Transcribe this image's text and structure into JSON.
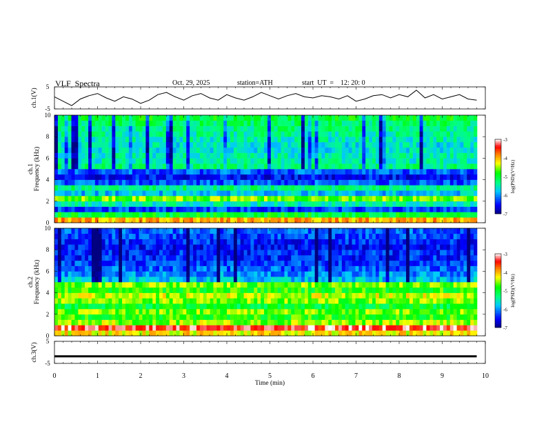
{
  "header": {
    "title": "VLF  Spectra",
    "date": "Oct. 29, 2025",
    "station": "station=ATH",
    "start_ut": "start  UT  =    12: 20: 0"
  },
  "colors": {
    "dark_blue": "#000080",
    "blue": "#0000ff",
    "cyan": "#00e0ff",
    "green": "#00ff00",
    "yellow": "#ffff00",
    "red": "#ff0000",
    "white": "#ffffff",
    "black": "#000000"
  },
  "chart_data": [
    {
      "type": "line",
      "name": "ch1-voltage",
      "ylabel": "ch.1(V)",
      "ylim": [
        -5,
        5
      ],
      "y_ticks": [
        "5",
        "-5"
      ],
      "xlim": [
        0,
        10
      ],
      "series": [
        {
          "name": "ch.1",
          "x": [
            0,
            0.2,
            0.4,
            0.6,
            0.8,
            1.0,
            1.2,
            1.4,
            1.6,
            1.8,
            2.0,
            2.2,
            2.4,
            2.6,
            2.8,
            3.0,
            3.2,
            3.4,
            3.6,
            3.8,
            4.0,
            4.2,
            4.4,
            4.6,
            4.8,
            5.0,
            5.2,
            5.4,
            5.6,
            5.8,
            6.0,
            6.2,
            6.4,
            6.6,
            6.8,
            7.0,
            7.2,
            7.4,
            7.6,
            7.8,
            8.0,
            8.2,
            8.4,
            8.6,
            8.8,
            9.0,
            9.2,
            9.4,
            9.6,
            9.8
          ],
          "values": [
            0.5,
            -1.5,
            -3.5,
            -0.5,
            1,
            2,
            0,
            -1.5,
            0.5,
            -0.5,
            -2.5,
            -1,
            1.5,
            2.5,
            0.5,
            -1,
            1,
            2,
            0,
            -1,
            1.5,
            0,
            -1,
            0.5,
            2.5,
            1,
            -0.5,
            1,
            2,
            0.5,
            0,
            1,
            0.5,
            -0.5,
            1,
            -1.5,
            -0.5,
            1,
            1.5,
            0,
            1.5,
            0.5,
            3.5,
            0,
            1.5,
            -0.5,
            0.5,
            1.5,
            -0.5,
            -1
          ]
        }
      ]
    },
    {
      "type": "heatmap",
      "name": "ch2-spectrogram-1",
      "ylabel": "ch.1\nFrequency (kHz)",
      "xlim": [
        0,
        10
      ],
      "ylim": [
        0,
        10
      ],
      "y_ticks": [
        "0",
        "2",
        "4",
        "6",
        "8",
        "10"
      ],
      "colorbar": {
        "label": "log(PSD)(V²/Hz)",
        "range": [
          -7,
          -3
        ],
        "ticks": [
          "-3",
          "-4",
          "-5",
          "-6",
          "-7"
        ]
      },
      "profile_freq_khz": [
        0.25,
        0.75,
        1.25,
        1.75,
        2.25,
        2.75,
        3.25,
        3.75,
        4.25,
        4.75,
        5.25,
        5.75,
        6.25,
        6.75,
        7.25,
        7.75,
        8.25,
        8.75,
        9.25,
        9.75
      ],
      "profile_log_psd": [
        -4.0,
        -5.0,
        -6.3,
        -5.5,
        -4.6,
        -5.8,
        -5.3,
        -6.2,
        -6.5,
        -6.2,
        -5.3,
        -5.5,
        -5.5,
        -5.6,
        -5.6,
        -5.5,
        -5.4,
        -5.3,
        -5.2,
        -5.0
      ]
    },
    {
      "type": "heatmap",
      "name": "ch2-spectrogram-2",
      "ylabel": "ch.2\nFrequency (kHz)",
      "xlim": [
        0,
        10
      ],
      "ylim": [
        0,
        10
      ],
      "y_ticks": [
        "0",
        "2",
        "4",
        "6",
        "8",
        "10"
      ],
      "colorbar": {
        "label": "log(PSD)(V²/Hz)",
        "range": [
          -7,
          -3
        ],
        "ticks": [
          "-3",
          "-4",
          "-5",
          "-6",
          "-7"
        ]
      },
      "profile_freq_khz": [
        0.25,
        0.75,
        1.25,
        1.75,
        2.25,
        2.75,
        3.25,
        3.75,
        4.25,
        4.75,
        5.25,
        5.75,
        6.25,
        6.75,
        7.25,
        7.75,
        8.25,
        8.75,
        9.25,
        9.75
      ],
      "profile_log_psd": [
        -4.2,
        -3.3,
        -4.5,
        -4.8,
        -4.6,
        -5.0,
        -4.6,
        -4.4,
        -4.8,
        -4.6,
        -5.8,
        -6.0,
        -6.2,
        -6.3,
        -6.4,
        -6.4,
        -6.5,
        -6.4,
        -6.3,
        -6.2
      ]
    },
    {
      "type": "line",
      "name": "ch3-voltage",
      "ylabel": "ch.3(V)",
      "ylim": [
        -5,
        5
      ],
      "y_ticks": [
        "5",
        "-5"
      ],
      "xlim": [
        0,
        10
      ],
      "series": [
        {
          "name": "ch.3",
          "x": [
            0,
            9.8
          ],
          "values": [
            -1.8,
            -1.8
          ]
        }
      ]
    }
  ],
  "x_axis": {
    "label": "Time  (min)",
    "ticks": [
      "0",
      "1",
      "2",
      "3",
      "4",
      "5",
      "6",
      "7",
      "8",
      "9",
      "10"
    ]
  }
}
